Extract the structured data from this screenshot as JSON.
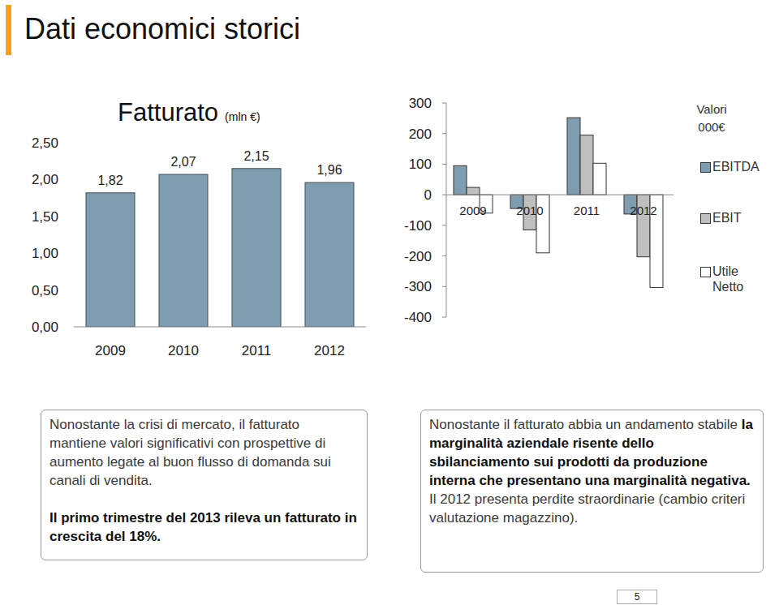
{
  "header": {
    "title": "Dati economici storici"
  },
  "chart_data": [
    {
      "type": "bar",
      "title": "Fatturato",
      "subtitle": "(mln €)",
      "categories": [
        "2009",
        "2010",
        "2011",
        "2012"
      ],
      "values": [
        1.82,
        2.07,
        2.15,
        1.96
      ],
      "value_labels": [
        "1,82",
        "2,07",
        "2,15",
        "1,96"
      ],
      "data_labels": true,
      "color": "#7f9db0",
      "ylim": [
        0,
        2.5
      ],
      "yticks": [
        {
          "value": 0,
          "label": "0,00"
        },
        {
          "value": 0.5,
          "label": "0,50"
        },
        {
          "value": 1,
          "label": "1,00"
        },
        {
          "value": 1.5,
          "label": "1,50"
        },
        {
          "value": 2,
          "label": "2,00"
        },
        {
          "value": 2.5,
          "label": "2,50"
        }
      ],
      "grid": false
    },
    {
      "type": "bar",
      "legend_title": "Valori 000€",
      "categories": [
        "2009",
        "2010",
        "2011",
        "2012"
      ],
      "series": [
        {
          "name": "EBITDA",
          "color": "#7f9db0",
          "values": [
            95,
            -45,
            252,
            -63
          ]
        },
        {
          "name": "EBIT",
          "color": "#bfbfbf",
          "values": [
            24,
            -115,
            195,
            -203
          ]
        },
        {
          "name": "Utile Netto",
          "color": "#ffffff",
          "values": [
            -60,
            -190,
            103,
            -303
          ]
        }
      ],
      "ylim": [
        -400,
        300
      ],
      "yticks": [
        -400,
        -300,
        -200,
        -100,
        0,
        100,
        200,
        300
      ],
      "grid": false,
      "legend": "right"
    }
  ],
  "notes": [
    {
      "paragraphs": [
        [
          {
            "text": "Nonostante la crisi di mercato, il fatturato mantiene valori significativi con prospettive di aumento legate al buon flusso di domanda sui canali di vendita.",
            "bold": false
          }
        ],
        [
          {
            "text": "Il primo trimestre del 2013 rileva un fatturato in crescita del 18%.",
            "bold": true
          }
        ]
      ]
    },
    {
      "paragraphs": [
        [
          {
            "text": "Nonostante il fatturato abbia un andamento stabile ",
            "bold": false
          },
          {
            "text": "la marginalità aziendale risente dello sbilanciamento sui prodotti da produzione interna che presentano una marginalità negativa.",
            "bold": true
          }
        ],
        [
          {
            "text": "Il 2012 presenta perdite straordinarie (cambio criteri valutazione magazzino).",
            "bold": false
          }
        ]
      ]
    }
  ],
  "footer": {
    "page": "5"
  }
}
